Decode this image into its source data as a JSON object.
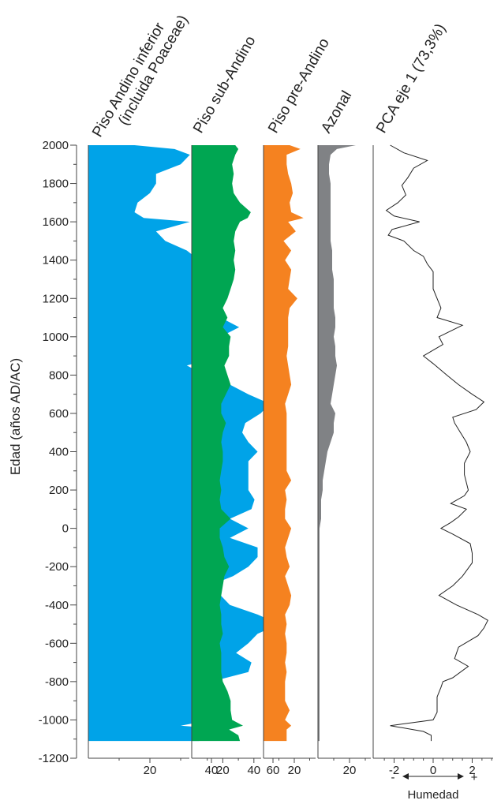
{
  "chart_data": {
    "type": "area",
    "ylabel": "Edad (años AD/AC)",
    "ylim": [
      -1200,
      2000
    ],
    "y_major_ticks": [
      2000,
      1800,
      1600,
      1400,
      1200,
      1000,
      800,
      600,
      400,
      200,
      0,
      -200,
      -400,
      -600,
      -800,
      -1000,
      -1200
    ],
    "y_tick_labels": [
      "2000",
      "1800",
      "1600",
      "1400",
      "1200",
      "1000",
      "800",
      "600",
      "400",
      "200",
      "0",
      "-200",
      "-400",
      "-600",
      "-800",
      "-1000",
      "-1200"
    ],
    "y_minor_step": 100,
    "ages": [
      2000,
      1980,
      1950,
      1900,
      1850,
      1800,
      1750,
      1700,
      1650,
      1620,
      1600,
      1550,
      1500,
      1450,
      1400,
      1350,
      1300,
      1250,
      1200,
      1150,
      1100,
      1050,
      1000,
      950,
      900,
      850,
      800,
      750,
      700,
      650,
      600,
      550,
      500,
      450,
      400,
      350,
      300,
      250,
      200,
      150,
      100,
      50,
      0,
      -50,
      -100,
      -150,
      -200,
      -250,
      -300,
      -350,
      -400,
      -450,
      -500,
      -550,
      -600,
      -650,
      -700,
      -750,
      -800,
      -850,
      -900,
      -950,
      -1000,
      -1030,
      -1050,
      -1080,
      -1110
    ],
    "series": [
      {
        "name": "Piso Andino inferior (incluida Poaceae)",
        "title_lines": [
          "Piso Andino inferior",
          "(incluida Poaceae)"
        ],
        "color": "#00a3e8",
        "xlim": [
          0,
          60
        ],
        "x_ticks": [
          20,
          40,
          60
        ],
        "x_tick_labels": [
          "20",
          "40",
          "60"
        ],
        "values": [
          15,
          28,
          33,
          30,
          22,
          22,
          20,
          16,
          15,
          18,
          33,
          22,
          25,
          32,
          36,
          38,
          36,
          36,
          36,
          42,
          43,
          49,
          43,
          43,
          43,
          32,
          38,
          46,
          52,
          59,
          56,
          51,
          50,
          52,
          55,
          52,
          52,
          52,
          52,
          54,
          53,
          46,
          52,
          46,
          55,
          55,
          52,
          47,
          39,
          43,
          46,
          55,
          62,
          55,
          52,
          48,
          53,
          52,
          40,
          38,
          40,
          42,
          40,
          30,
          46,
          36,
          36
        ]
      },
      {
        "name": "Piso sub-Andino",
        "title_lines": [
          "Piso sub-Andino"
        ],
        "color": "#00a652",
        "xlim": [
          0,
          40
        ],
        "x_ticks": [
          20,
          40
        ],
        "x_tick_labels": [
          "20",
          "40"
        ],
        "values": [
          28,
          30,
          28,
          26,
          27,
          26,
          27,
          31,
          38,
          36,
          31,
          28,
          27,
          28,
          27,
          28,
          27,
          25,
          23,
          20,
          23,
          20,
          25,
          24,
          24,
          21,
          23,
          25,
          22,
          19,
          19,
          22,
          20,
          19,
          20,
          20,
          19,
          18,
          19,
          18,
          19,
          25,
          18,
          18,
          20,
          21,
          24,
          21,
          20,
          19,
          18,
          19,
          19,
          20,
          18,
          19,
          19,
          19,
          20,
          23,
          25,
          25,
          26,
          33,
          24,
          30,
          31
        ]
      },
      {
        "name": "Piso pre-Andino",
        "title_lines": [
          "Piso pre-Andino"
        ],
        "color": "#f58220",
        "xlim": [
          0,
          30
        ],
        "x_ticks": [
          20
        ],
        "x_tick_labels": [
          "20"
        ],
        "values": [
          17,
          24,
          15,
          15,
          16,
          18,
          19,
          17,
          18,
          26,
          16,
          21,
          13,
          18,
          14,
          18,
          17,
          16,
          22,
          17,
          16,
          16,
          16,
          16,
          15,
          16,
          17,
          18,
          16,
          14,
          15,
          15,
          15,
          15,
          15,
          15,
          15,
          18,
          14,
          15,
          14,
          14,
          18,
          16,
          14,
          15,
          17,
          14,
          16,
          18,
          17,
          14,
          15,
          14,
          15,
          15,
          14,
          15,
          14,
          14,
          14,
          17,
          14,
          18,
          15,
          15,
          15
        ]
      },
      {
        "name": "Azonal",
        "title_lines": [
          "Azonal"
        ],
        "color": "#808285",
        "xlim": [
          0,
          30
        ],
        "x_ticks": [
          20
        ],
        "x_tick_labels": [
          "20"
        ],
        "values": [
          24,
          12,
          8,
          7,
          7,
          8,
          8,
          8,
          8,
          8,
          8,
          8,
          8,
          9,
          9,
          9,
          10,
          10,
          10,
          10,
          11,
          11,
          10,
          11,
          11,
          12,
          11,
          10,
          9,
          8,
          11,
          10,
          10,
          8,
          6,
          5,
          4,
          3,
          3,
          2,
          2,
          2,
          1,
          1,
          1,
          1,
          1,
          1,
          1,
          1,
          1,
          1,
          1,
          1,
          1,
          1,
          1,
          1,
          1,
          1,
          1,
          1,
          1,
          1,
          1,
          1,
          1
        ]
      }
    ],
    "pca": {
      "name": "PCA eje 1 (73,3%)",
      "title_lines": [
        "PCA eje 1 (73,3%)"
      ],
      "color": "#222222",
      "xlim": [
        -2.8,
        3.2
      ],
      "x_ticks": [
        -2,
        0,
        2
      ],
      "x_tick_labels": [
        "-2",
        "0",
        "2"
      ],
      "ages": [
        2000,
        1960,
        1920,
        1880,
        1830,
        1790,
        1740,
        1700,
        1660,
        1630,
        1600,
        1560,
        1530,
        1500,
        1450,
        1420,
        1380,
        1340,
        1300,
        1250,
        1200,
        1150,
        1100,
        1060,
        1000,
        960,
        900,
        860,
        800,
        750,
        700,
        660,
        620,
        580,
        550,
        500,
        450,
        400,
        340,
        280,
        200,
        170,
        130,
        100,
        60,
        30,
        0,
        -30,
        -80,
        -130,
        -180,
        -250,
        -300,
        -350,
        -400,
        -450,
        -480,
        -520,
        -560,
        -620,
        -680,
        -720,
        -780,
        -800,
        -830,
        -880,
        -920,
        -960,
        -1000,
        -1030,
        -1060,
        -1080,
        -1110
      ],
      "values": [
        -2.2,
        -1.5,
        -0.3,
        -1.0,
        -1.3,
        -1.6,
        -1.4,
        -1.8,
        -2.4,
        -2.0,
        -0.7,
        -2.1,
        -2.3,
        -1.5,
        -1.0,
        -0.5,
        -0.3,
        0.0,
        0.0,
        0.0,
        0.2,
        0.4,
        0.2,
        1.5,
        0.3,
        0.5,
        -0.5,
        0.0,
        0.7,
        1.3,
        2.0,
        2.6,
        2.2,
        1.0,
        1.1,
        1.4,
        1.7,
        1.9,
        1.6,
        1.6,
        1.8,
        1.6,
        0.9,
        1.7,
        1.3,
        0.9,
        0.4,
        1.0,
        1.9,
        2.0,
        2.0,
        1.5,
        1.0,
        0.3,
        1.2,
        2.3,
        2.8,
        2.6,
        2.3,
        1.3,
        1.1,
        1.8,
        1.0,
        0.5,
        0.4,
        0.2,
        0.2,
        0.2,
        0.0,
        -2.2,
        -0.5,
        -0.1,
        -0.1
      ]
    },
    "annotations": {
      "humidity_label": "Humedad",
      "minus_sign": "-",
      "plus_sign": "+"
    }
  }
}
